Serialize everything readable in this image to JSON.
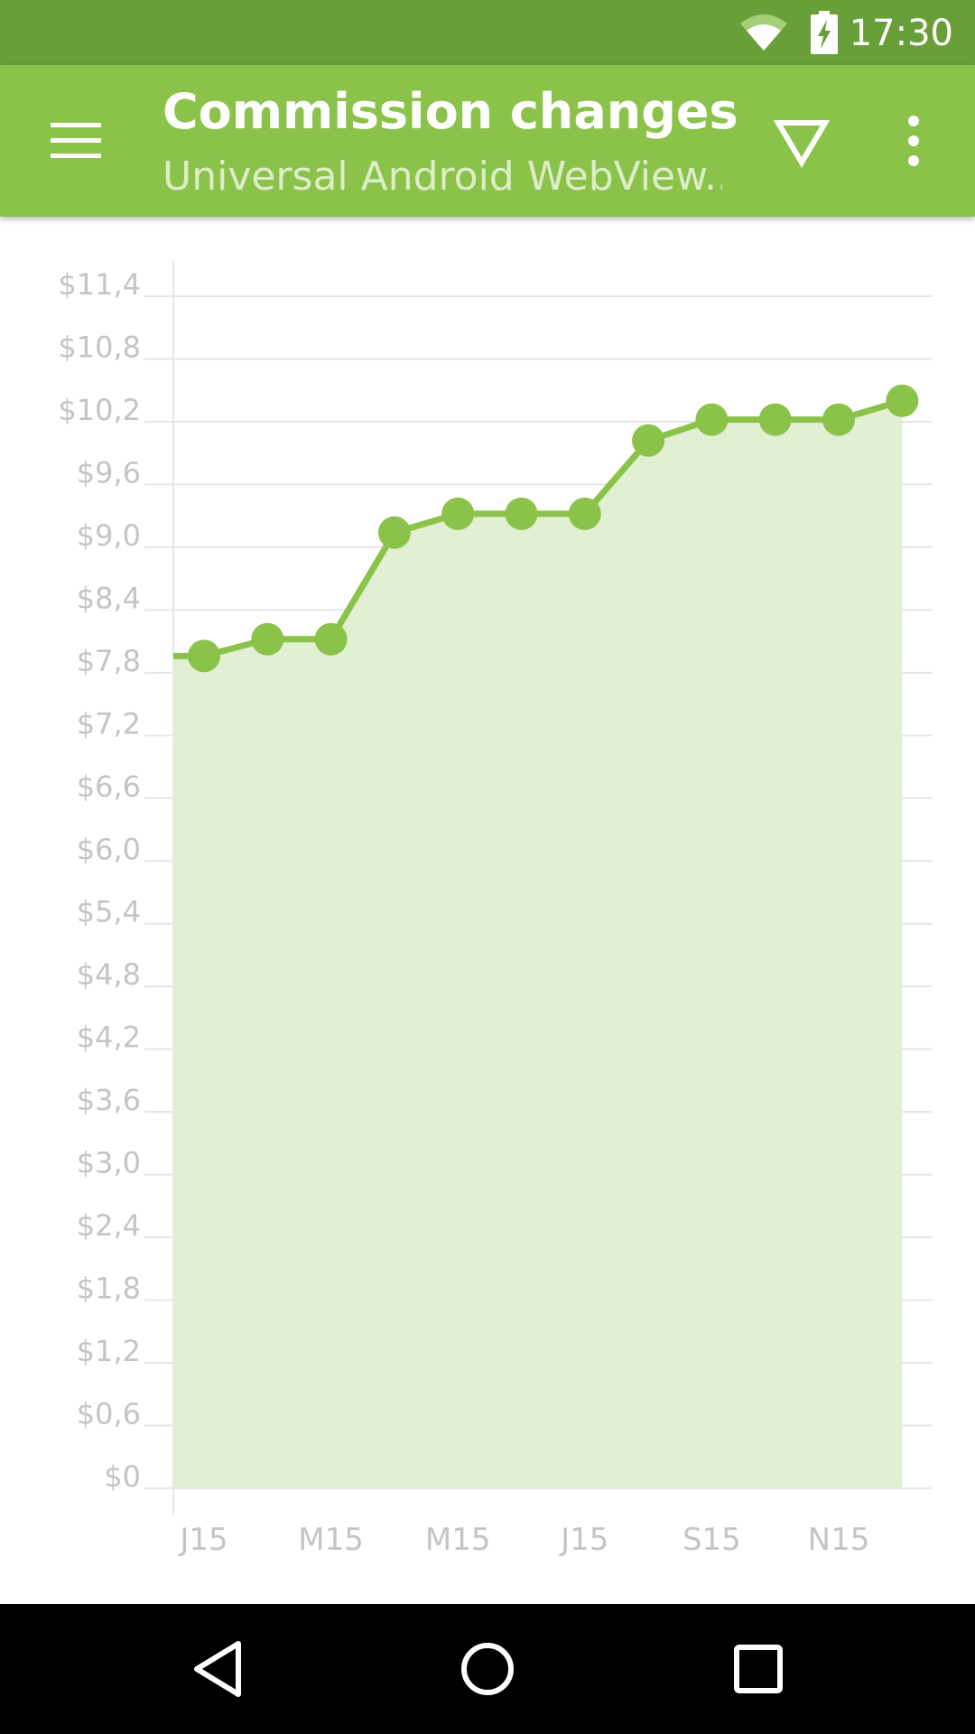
{
  "status_bar": {
    "time": "17:30",
    "icons": [
      "wifi-icon",
      "battery-charging-icon"
    ]
  },
  "app_bar": {
    "title": "Commission changes",
    "subtitle": "Universal Android WebView...",
    "icons": [
      "menu-icon",
      "filter-icon",
      "more-vert-icon"
    ]
  },
  "colors": {
    "status_bar": "#689f38",
    "app_bar": "#8bc34a",
    "series_line": "#8bc34a",
    "series_fill": "#e1efd2",
    "gridline": "#e6e6e6",
    "axis_text": "#c4c4c4"
  },
  "chart_data": {
    "type": "area",
    "title": "",
    "xlabel": "",
    "ylabel": "",
    "ylim": [
      0,
      11.4
    ],
    "grid": true,
    "x_tick_labels": [
      "J15",
      "M15",
      "M15",
      "J15",
      "S15",
      "N15"
    ],
    "y_tick_labels": [
      "$0",
      "$0,6",
      "$1,2",
      "$1,8",
      "$2,4",
      "$3,0",
      "$3,6",
      "$4,2",
      "$4,8",
      "$5,4",
      "$6,0",
      "$6,6",
      "$7,2",
      "$7,8",
      "$8,4",
      "$9,0",
      "$9,6",
      "$10,2",
      "$10,8",
      "$11,4"
    ],
    "y_ticks": [
      0,
      0.6,
      1.2,
      1.8,
      2.4,
      3.0,
      3.6,
      4.2,
      4.8,
      5.4,
      6.0,
      6.6,
      7.2,
      7.8,
      8.4,
      9.0,
      9.6,
      10.2,
      10.8,
      11.4
    ],
    "series": [
      {
        "values": [
          7.96,
          8.12,
          8.12,
          9.14,
          9.32,
          9.32,
          9.32,
          10.02,
          10.22,
          10.22,
          10.22,
          10.4
        ]
      }
    ]
  },
  "nav_bar": {
    "icons": [
      "back-icon",
      "home-icon",
      "recent-apps-icon"
    ]
  }
}
